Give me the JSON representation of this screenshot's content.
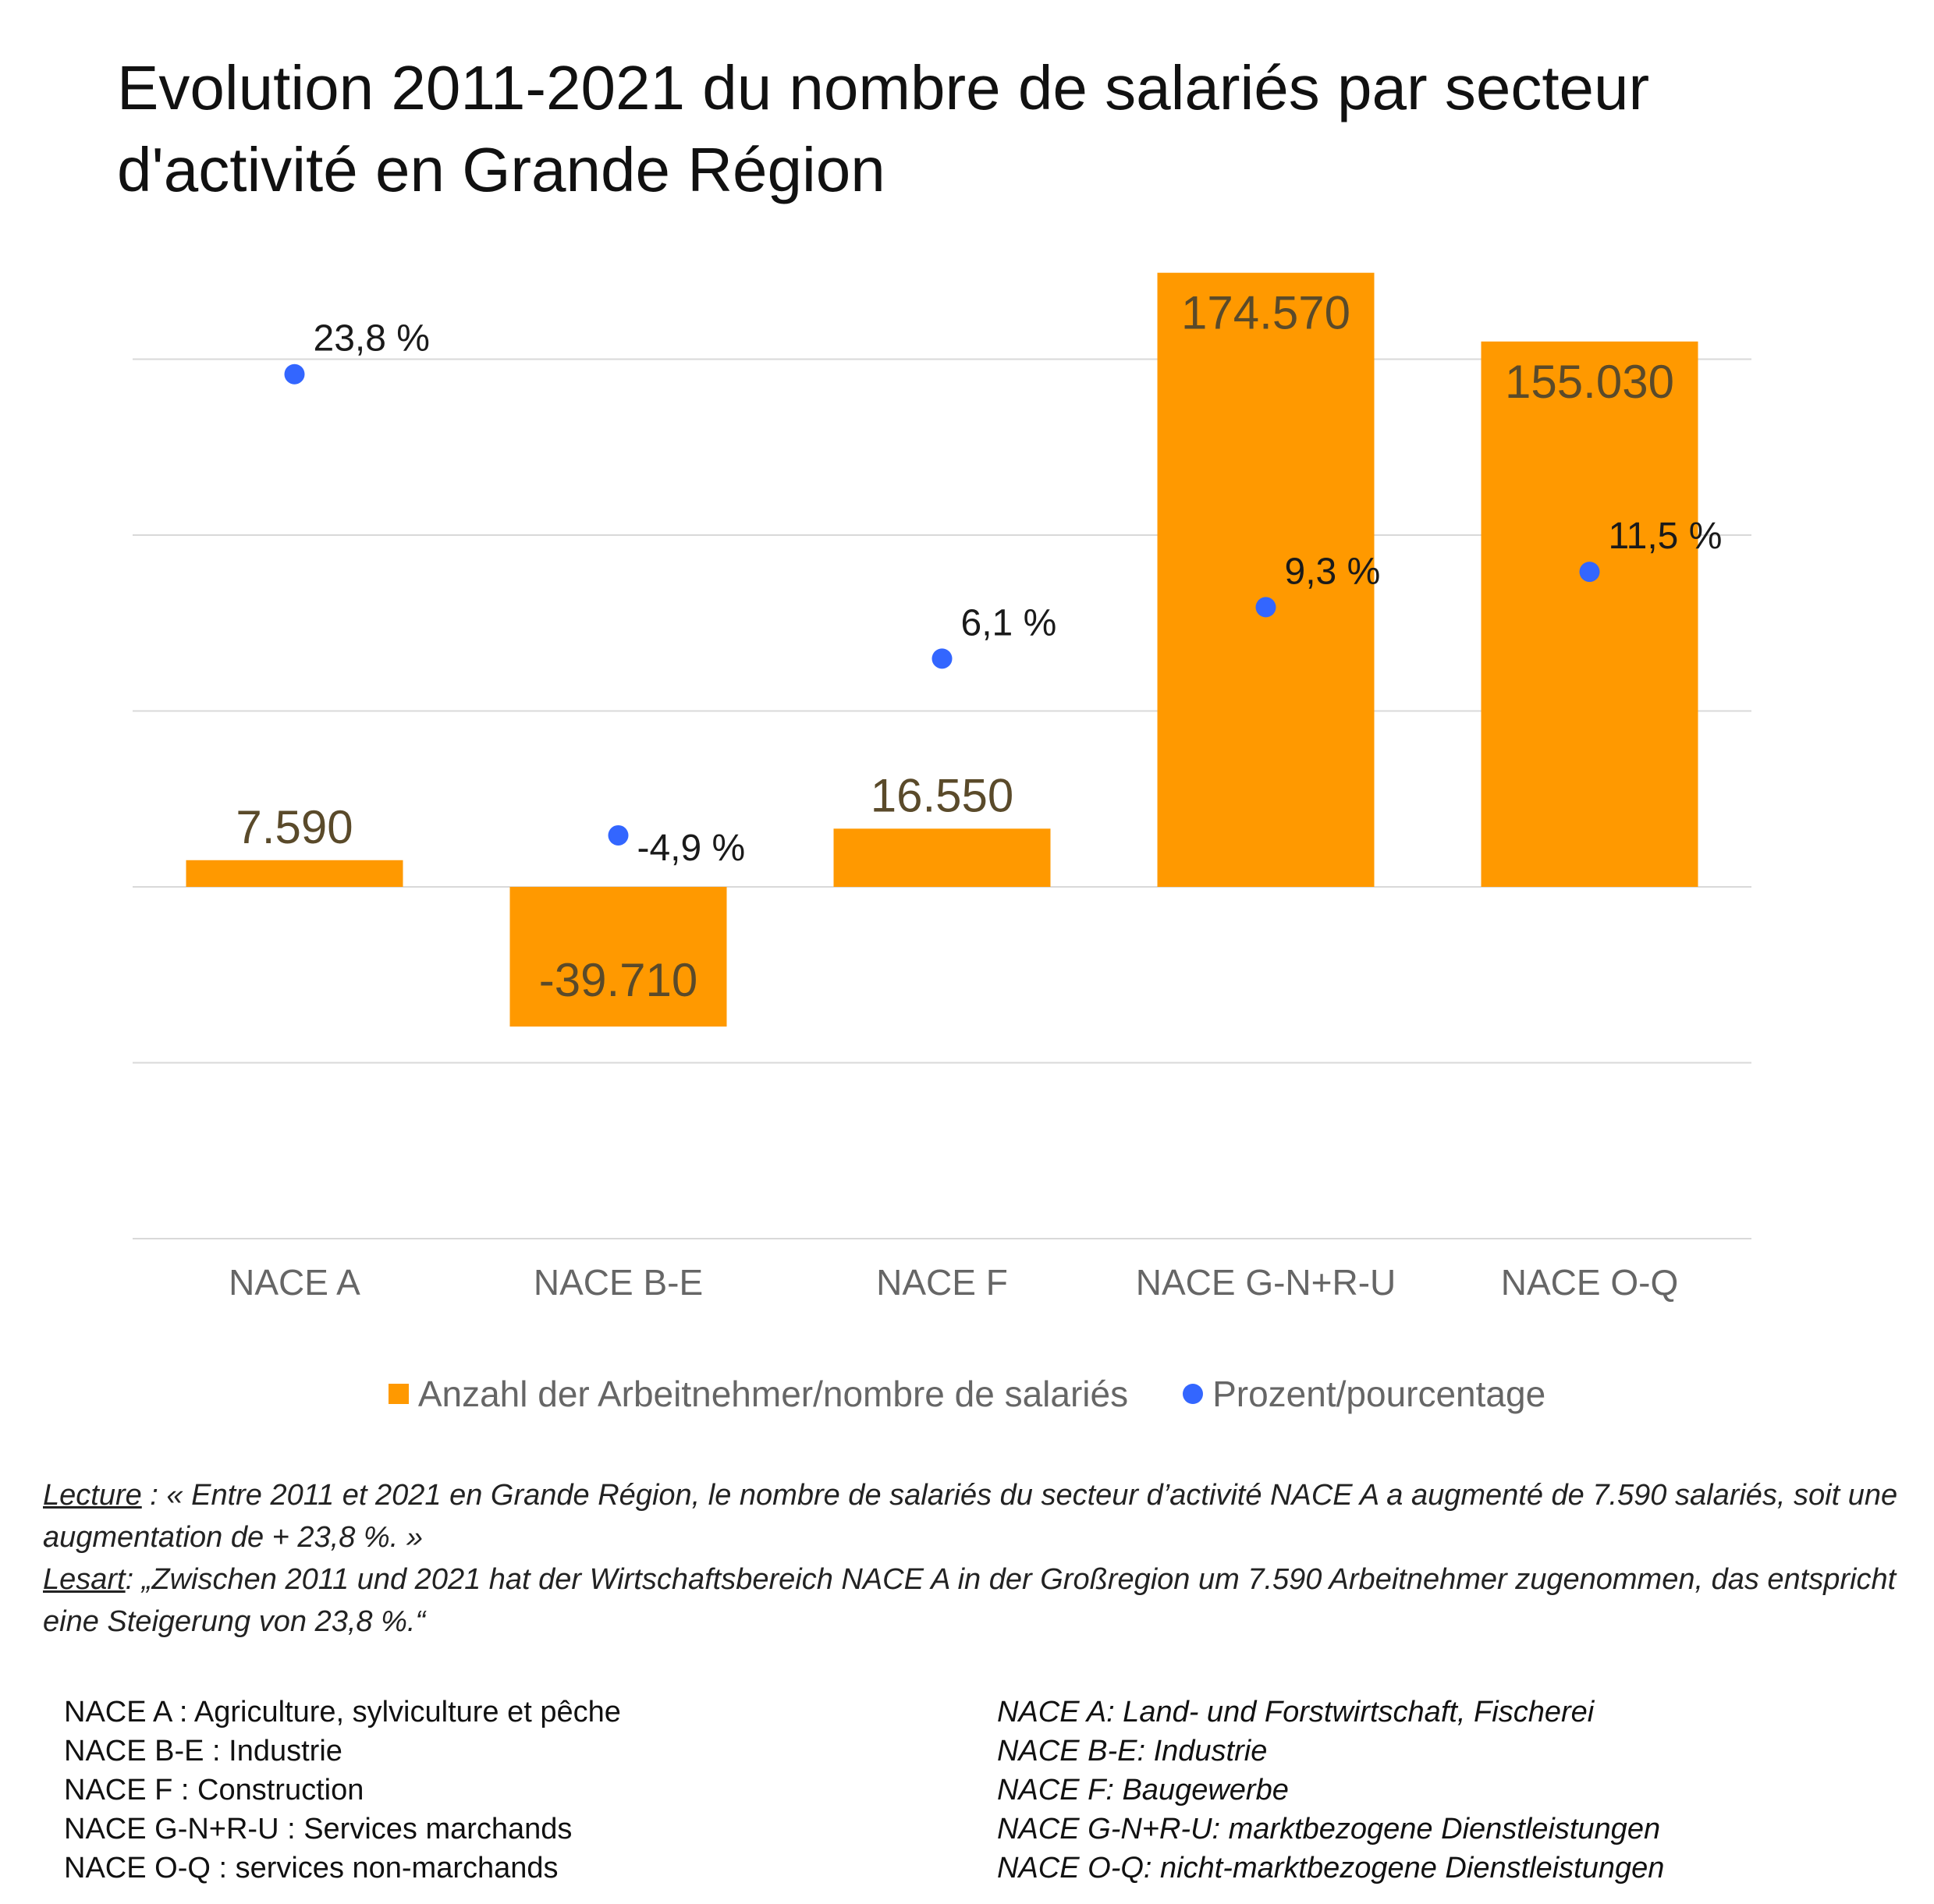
{
  "title": "Evolution 2011-2021 du nombre de salariés par secteur d'activité en Grande Région",
  "chart_data": {
    "type": "bar",
    "categories": [
      "NACE A",
      "NACE B-E",
      "NACE F",
      "NACE G-N+R-U",
      "NACE O-Q"
    ],
    "series": [
      {
        "name": "Anzahl der Arbeitnehmer/nombre de salariés",
        "type": "bar",
        "values": [
          7590,
          -39710,
          16550,
          174570,
          155030
        ],
        "labels": [
          "7.590",
          "-39.710",
          "16.550",
          "174.570",
          "155.030"
        ]
      },
      {
        "name": "Prozent/pourcentage",
        "type": "scatter",
        "values": [
          23.8,
          -4.9,
          6.1,
          9.3,
          11.5
        ],
        "labels": [
          "23,8 %",
          "-4,9 %",
          "6,1 %",
          "9,3 %",
          "11,5 %"
        ]
      }
    ],
    "bar_axis_range": [
      -100000,
      200000
    ],
    "percent_axis_range": [
      -30,
      25
    ],
    "grid": true,
    "legend_position": "bottom",
    "colors": {
      "bars": "#ff9900",
      "points": "#3366ff"
    }
  },
  "legend": {
    "bars": "Anzahl der Arbeitnehmer/nombre de salariés",
    "points": "Prozent/pourcentage"
  },
  "reading": {
    "fr_label": "Lecture",
    "fr_text": " : « Entre 2011 et 2021 en Grande Région, le nombre de salariés du secteur d’activité NACE A a augmenté de 7.590 salariés, soit une augmentation de + 23,8 %. »",
    "de_label": "Lesart",
    "de_text": ": „Zwischen 2011 und 2021 hat der Wirtschaftsbereich NACE A in der Großregion um 7.590 Arbeitnehmer zugenommen, das entspricht eine Steigerung von 23,8 %.“"
  },
  "definitions_fr": [
    "NACE A : Agriculture, sylviculture et pêche",
    "NACE B-E : Industrie",
    "NACE F : Construction",
    "NACE G-N+R-U : Services marchands",
    "NACE O-Q : services non-marchands"
  ],
  "definitions_de": [
    "NACE A: Land- und Forstwirtschaft, Fischerei",
    "NACE B-E: Industrie",
    "NACE F: Baugewerbe",
    "NACE G-N+R-U: marktbezogene Dienstleistungen",
    "NACE O-Q: nicht-marktbezogene Dienstleistungen"
  ]
}
